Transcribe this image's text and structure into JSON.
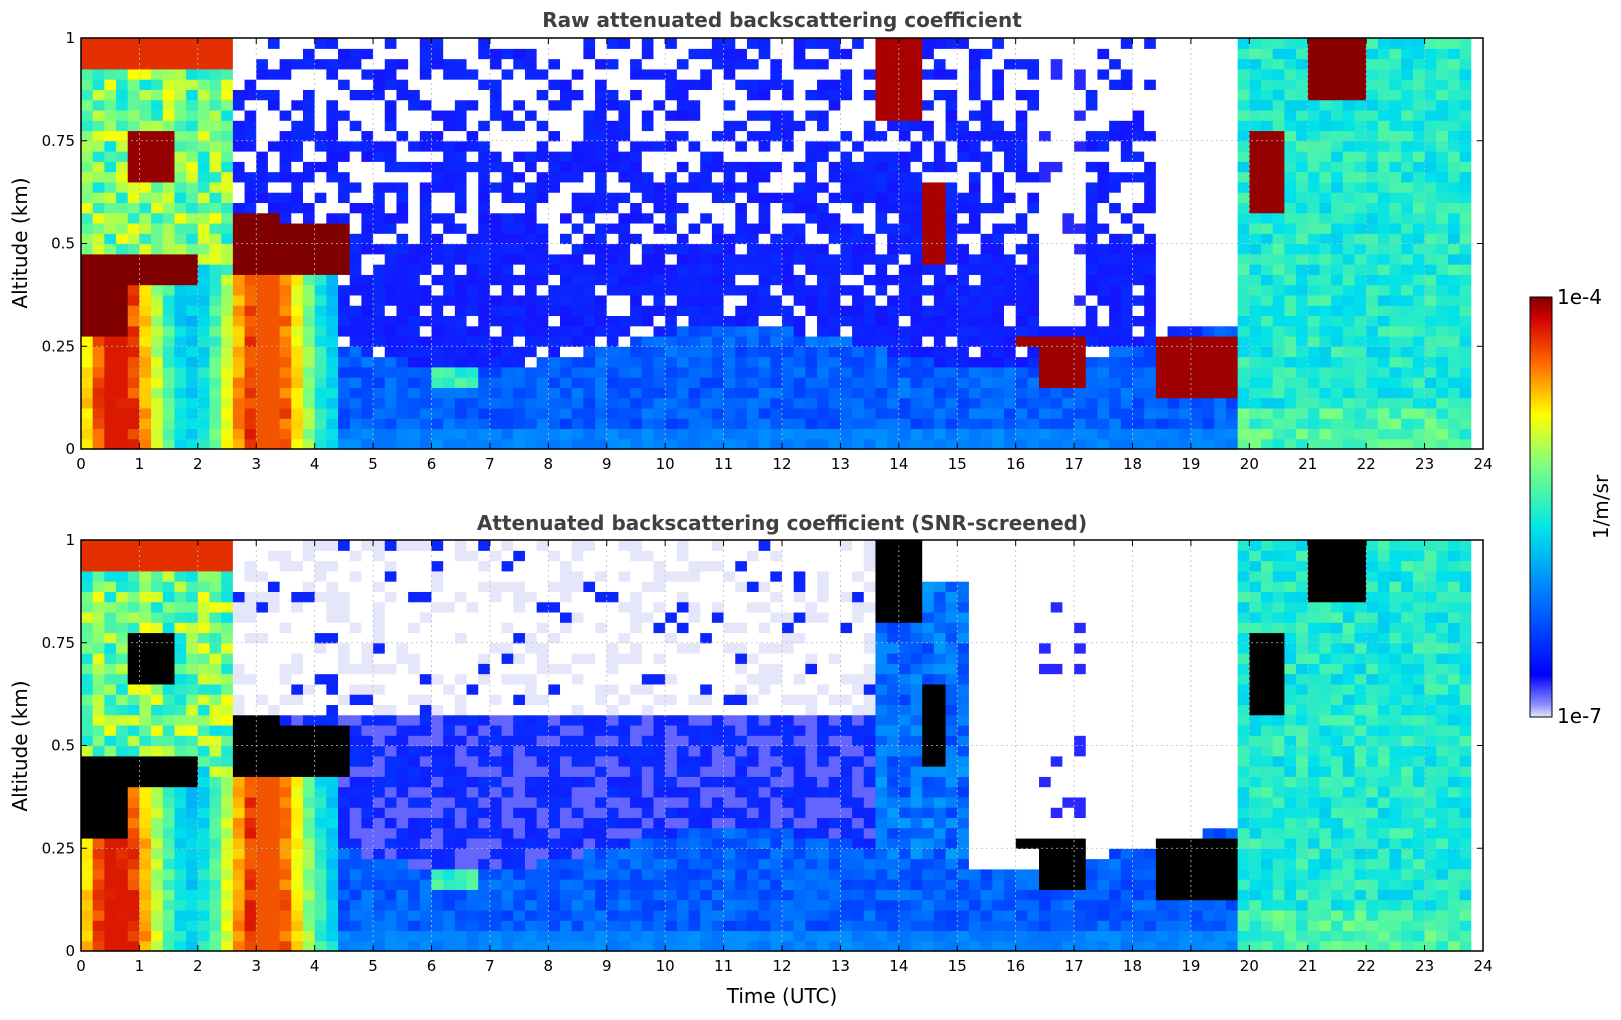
{
  "chart_data": [
    {
      "type": "heatmap",
      "title": "Raw attenuated backscattering coefficient",
      "xlabel": "",
      "ylabel": "Altitude (km)",
      "xlim": [
        0,
        24
      ],
      "ylim": [
        0,
        1
      ],
      "xticks": [
        0,
        1,
        2,
        3,
        4,
        5,
        6,
        7,
        8,
        9,
        10,
        11,
        12,
        13,
        14,
        15,
        16,
        17,
        18,
        19,
        20,
        21,
        22,
        23,
        24
      ],
      "yticks": [
        0,
        0.25,
        0.5,
        0.75,
        1
      ],
      "ytick_labels": [
        "0",
        "0.25",
        "0.5",
        "0.75",
        "1"
      ],
      "grid": true,
      "layers": [
        {
          "name": "near-surface",
          "x0": 0,
          "x1": 4.5,
          "y0": 0,
          "y1": 0.45,
          "level": 0.55
        },
        {
          "name": "cloud-a",
          "x0": 0,
          "x1": 0.8,
          "y0": 0.28,
          "y1": 0.48,
          "level": 0.95
        },
        {
          "name": "cloud-b",
          "x0": 2.6,
          "x1": 4.6,
          "y0": 0.42,
          "y1": 0.58,
          "level": 0.95
        },
        {
          "name": "cloud-c",
          "x0": 15.9,
          "x1": 17.2,
          "y0": 0.14,
          "y1": 0.28,
          "level": 0.95
        },
        {
          "name": "cloud-d",
          "x0": 18.4,
          "x1": 19.8,
          "y0": 0.12,
          "y1": 0.28,
          "level": 0.95
        },
        {
          "name": "cloud-e",
          "x0": 20.1,
          "x1": 20.6,
          "y0": 0.6,
          "y1": 0.78,
          "level": 0.95
        },
        {
          "name": "cloud-f",
          "x0": 21,
          "x1": 22,
          "y0": 0.85,
          "y1": 1,
          "level": 0.95
        }
      ]
    },
    {
      "type": "heatmap",
      "title": "Attenuated backscattering coefficient (SNR-screened)",
      "xlabel": "Time (UTC)",
      "ylabel": "Altitude (km)",
      "xlim": [
        0,
        24
      ],
      "ylim": [
        0,
        1
      ],
      "xticks": [
        0,
        1,
        2,
        3,
        4,
        5,
        6,
        7,
        8,
        9,
        10,
        11,
        12,
        13,
        14,
        15,
        16,
        17,
        18,
        19,
        20,
        21,
        22,
        23,
        24
      ],
      "yticks": [
        0,
        0.25,
        0.5,
        0.75,
        1
      ],
      "ytick_labels": [
        "0",
        "0.25",
        "0.5",
        "0.75",
        "1"
      ],
      "grid": true,
      "saturation_color": "#000000"
    }
  ],
  "colorbar": {
    "label": "1/m/sr",
    "max_label": "1e-4",
    "min_label": "1e-7",
    "colormap": "jet",
    "under_color": "#e6e6fa",
    "min_value": 1e-07,
    "max_value": 0.0001
  }
}
